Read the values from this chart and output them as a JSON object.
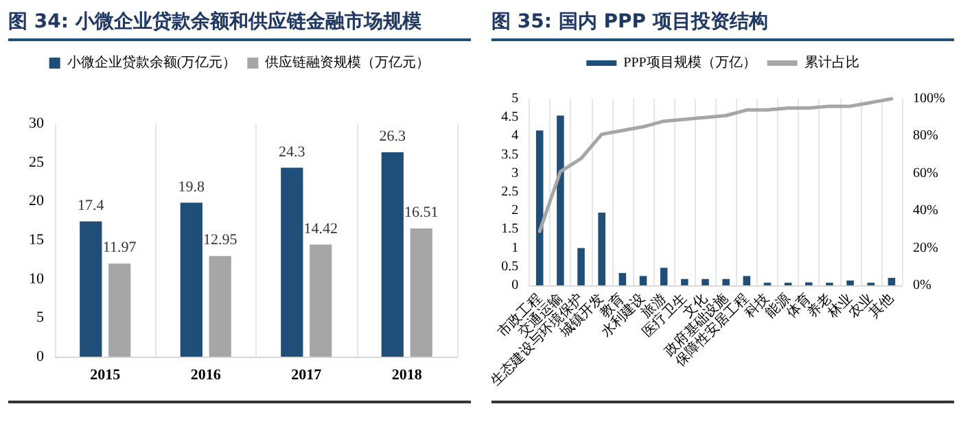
{
  "chart_data": [
    {
      "type": "bar",
      "title": "图 34: 小微企业贷款余额和供应链金融市场规模",
      "categories": [
        "2015",
        "2016",
        "2017",
        "2018"
      ],
      "series": [
        {
          "name": "小微企业贷款余额(万亿元）",
          "color": "#1f4e79",
          "values": [
            17.4,
            19.8,
            24.3,
            26.3
          ]
        },
        {
          "name": "供应链融资规模（万亿元）",
          "color": "#a6a6a6",
          "values": [
            11.97,
            12.95,
            14.42,
            16.51
          ]
        }
      ],
      "ylim": [
        0,
        30
      ],
      "yticks": [
        0,
        5,
        10,
        15,
        20,
        25,
        30
      ],
      "grid": "x",
      "legend": "top",
      "data_labels": true
    },
    {
      "type": "bar",
      "title": "图 35: 国内 PPP 项目投资结构",
      "categories": [
        "市政工程",
        "交通运输",
        "生态建设与环境保护",
        "城镇开发",
        "教育",
        "水利建设",
        "旅游",
        "医疗卫生",
        "文化",
        "政府基础设施",
        "保障性安居工程",
        "科技",
        "能源",
        "体育",
        "养老",
        "林业",
        "农业",
        "其他"
      ],
      "series": [
        {
          "name": "PPP项目规模（万亿）",
          "color": "#1f4e79",
          "values": [
            4.15,
            4.55,
            1.0,
            1.95,
            0.33,
            0.25,
            0.47,
            0.17,
            0.17,
            0.17,
            0.25,
            0.07,
            0.07,
            0.08,
            0.07,
            0.13,
            0.07,
            0.2
          ]
        },
        {
          "name": "累计占比",
          "type": "line",
          "axis": "y2",
          "color": "#a6a6a6",
          "values": [
            29,
            61,
            68,
            81,
            83,
            85,
            88,
            89,
            90,
            91,
            94,
            94,
            95,
            95,
            96,
            96,
            98,
            100
          ]
        }
      ],
      "ylim": [
        0,
        5
      ],
      "yticks": [
        0,
        0.5,
        1,
        1.5,
        2,
        2.5,
        3,
        3.5,
        4,
        4.5,
        5
      ],
      "y2lim": [
        0,
        100
      ],
      "y2ticks": [
        {
          "value": 0,
          "label": "0%"
        },
        {
          "value": 20,
          "label": "20%"
        },
        {
          "value": 40,
          "label": "40%"
        },
        {
          "value": 60,
          "label": "60%"
        },
        {
          "value": 80,
          "label": "80%"
        },
        {
          "value": 100,
          "label": "100%"
        }
      ],
      "grid": "x",
      "legend": "top",
      "marker": "none"
    }
  ]
}
